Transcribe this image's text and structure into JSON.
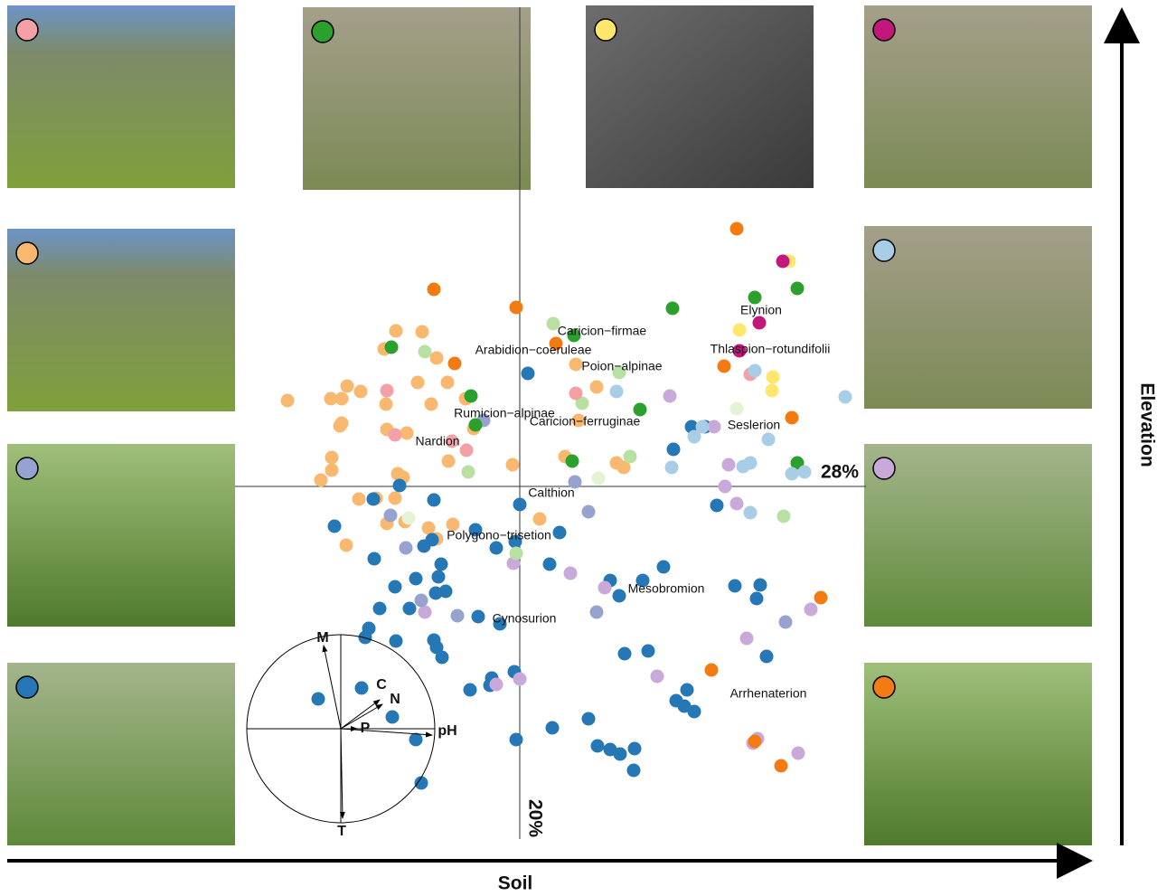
{
  "chart_data": {
    "type": "scatter",
    "x_label": "Soil",
    "y_label": "Elevation",
    "x_variance_label": "28%",
    "y_variance_label": "20%",
    "xlim": [
      -31.5,
      38.5
    ],
    "ylim": [
      -39,
      53
    ],
    "annotations": [
      "Caricion−firmae",
      "Arabidion−coeruleae",
      "Poion−alpinae",
      "Elynion",
      "Thlaspion−rotundifolii",
      "Rumicion−alpinae",
      "Caricion−ferruginae",
      "Seslerion",
      "Nardion",
      "Calthion",
      "Polygono−trisetion",
      "Mesobromion",
      "Cynosurion",
      "Arrhenaterion"
    ],
    "biplot_labels": [
      "M",
      "C",
      "N",
      "P",
      "pH",
      "T"
    ],
    "series": [
      {
        "color": "#f9b870",
        "x": [
          -13.7,
          -10.8,
          -15,
          -9.2,
          -19.1,
          -20.9,
          -19.7,
          -17.6,
          -14.8,
          -11.3,
          -8,
          -9.8,
          -25.7,
          -19.7,
          -19.9,
          -14.7,
          -12.5,
          -5.1,
          -6,
          -20.8,
          -20.8,
          -22,
          -13.5,
          -12.9,
          -7.9,
          -0.8,
          -17.8,
          -15.9,
          -13.8,
          -14.7,
          -12.7,
          -10.1,
          -7.4,
          -19.2,
          6.2,
          8.5,
          6.5,
          5,
          10.7,
          11.5,
          2.2,
          -9.2
        ],
        "values": [
          17.2,
          17.1,
          15.2,
          14.2,
          11.1,
          9.7,
          9.7,
          10.5,
          9.1,
          11.5,
          11.5,
          9.1,
          9.5,
          7,
          6.7,
          6.3,
          5.9,
          6.4,
          9.7,
          3.2,
          1.8,
          0.7,
          1.4,
          1,
          2.8,
          2.4,
          -1.4,
          -1.3,
          -1.3,
          -4.1,
          -3.9,
          -4.6,
          -4.2,
          -6.5,
          13.5,
          11,
          7.3,
          3.3,
          2.6,
          2.1,
          -3.6,
          -5.8
        ]
      },
      {
        "color": "#2677b5",
        "x": [
          0.9,
          19,
          20.5,
          17,
          21.8,
          0,
          -13.3,
          -16.2,
          -9.5,
          -20.5,
          -4.9,
          -9.7,
          -10.6,
          -2.6,
          -0.5,
          4.4,
          -16.1,
          -11.5,
          -9,
          -8.7,
          -13.8,
          -9.3,
          -8.2,
          3.3,
          10,
          13.6,
          15.9,
          11,
          23.8,
          26.6,
          26.2,
          -15.5,
          -12.2,
          -4.6,
          -2.2,
          -16.7,
          -17.1,
          -13.7,
          -9.5,
          -9.2,
          -8.6,
          11.6,
          14.2,
          27.3,
          -3.1,
          -3.3,
          -0.6,
          -5.5,
          18.5,
          17.3,
          18.2,
          19.3,
          7.6,
          3.6,
          -0.4,
          8.6,
          10,
          11.1,
          12.7,
          12.6,
          -22.3,
          -17.5,
          -14.1,
          -11.5,
          -10.9
        ],
        "values": [
          12.5,
          6.6,
          6.6,
          4.1,
          -2.1,
          -2,
          0.1,
          -1.4,
          -1.5,
          -4.4,
          -4.8,
          -5.9,
          -6.6,
          -6.8,
          -6.1,
          -5.1,
          -8,
          -10.2,
          -10,
          -8.6,
          -11.1,
          -11.8,
          -11.6,
          -8.6,
          -10.4,
          -10.4,
          -8.9,
          -12.1,
          -11,
          -10.9,
          -12.4,
          -13.5,
          -13.5,
          -14.4,
          -15.2,
          -15.7,
          -16.7,
          -17.1,
          -17,
          -17.8,
          -18.9,
          -18.5,
          -18.2,
          -18.8,
          -21.2,
          -22,
          -20.5,
          -22.5,
          -22.5,
          -23.7,
          -24.3,
          -24.9,
          -25.7,
          -26.7,
          -28,
          -28.7,
          -29.1,
          -29.6,
          -29,
          -31.4,
          -23.5,
          -22.3,
          -25.5,
          -28,
          -32.8
        ]
      },
      {
        "color": "#c9a9d9",
        "x": [
          16.6,
          21.5,
          23.1,
          22.7,
          24,
          5.6,
          9.4,
          -0.7,
          -10.5,
          25.1,
          32.2,
          15.2,
          -2.6,
          0,
          25.8,
          26.3,
          30.8
        ],
        "values": [
          10,
          6.6,
          2.4,
          0,
          -1.9,
          -9.6,
          -11.2,
          -8.5,
          -13.9,
          -16.8,
          -13.6,
          -21,
          -21.9,
          -21.3,
          -28.4,
          -27.9,
          -29.5
        ]
      },
      {
        "color": "#97a3cf",
        "x": [
          -4,
          -14.3,
          -12.6,
          7.6,
          6.1,
          -10.9,
          -6.9,
          8.5,
          29.4
        ],
        "values": [
          7.3,
          -3.2,
          -6.8,
          -2.8,
          0.5,
          -12.6,
          -14.3,
          -13.9,
          -15
        ]
      },
      {
        "color": "#f47b12",
        "x": [
          -9.5,
          -0.4,
          -7.2,
          4,
          24,
          22.6,
          30.1,
          33.3,
          21.2,
          26,
          28.9
        ],
        "values": [
          21.8,
          19.8,
          13.6,
          15.8,
          28.5,
          13.3,
          7.6,
          -12.3,
          -20.3,
          -28.2,
          -30.9
        ]
      },
      {
        "color": "#2ca02c",
        "x": [
          -14.2,
          6,
          16.9,
          26,
          30.7,
          -5.4,
          -4.9,
          13.3,
          5.8,
          30.7
        ],
        "values": [
          15.4,
          16.7,
          19.7,
          20.9,
          21.9,
          10,
          6.8,
          8.5,
          2.8,
          2.6
        ]
      },
      {
        "color": "#b7e0a2",
        "x": [
          3.7,
          -10.5,
          11,
          6.9,
          -5.7,
          12.2,
          29.2,
          -0.4
        ],
        "values": [
          18,
          14.9,
          12.6,
          9.2,
          1.6,
          3.3,
          -3.3,
          -7.4
        ]
      },
      {
        "color": "#e2f3d6",
        "x": [
          8.7,
          24,
          -12.3
        ],
        "values": [
          0.9,
          8.6,
          -3.5
        ]
      },
      {
        "color": "#f3a1a6",
        "x": [
          -14.7,
          -13.8,
          -7.5,
          -5.9,
          6.2,
          25.5
        ],
        "values": [
          10.6,
          5.7,
          5,
          4,
          10.3,
          12.4
        ]
      },
      {
        "color": "#a8cde6",
        "x": [
          10.7,
          26,
          19.3,
          27.5,
          36,
          16.8,
          24.7,
          25.5,
          30.1,
          31.5,
          25.5,
          20.2
        ],
        "values": [
          10.5,
          12.8,
          5.5,
          5.2,
          9.9,
          2.1,
          2.2,
          2.6,
          1.4,
          1.6,
          -2.9,
          6.6
        ]
      },
      {
        "color": "#ffe66d",
        "x": [
          29.8,
          24.3,
          28,
          27.9
        ],
        "values": [
          24.9,
          17.3,
          12.1,
          10.6
        ]
      },
      {
        "color": "#c2187b",
        "x": [
          29.1,
          26.5,
          24.3
        ],
        "values": [
          24.9,
          18.1,
          15
        ]
      }
    ]
  }
}
